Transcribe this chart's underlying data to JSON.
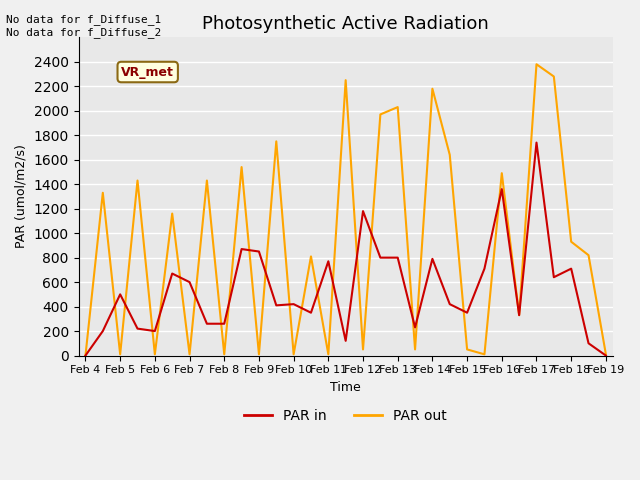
{
  "title": "Photosynthetic Active Radiation",
  "xlabel": "Time",
  "ylabel": "PAR (umol/m2/s)",
  "annotation_top": "No data for f_Diffuse_1\nNo data for f_Diffuse_2",
  "box_label": "VR_met",
  "x_labels": [
    "Feb 4",
    "Feb 5",
    "Feb 6",
    "Feb 7",
    "Feb 8",
    "Feb 9",
    "Feb 10",
    "Feb 11",
    "Feb 12",
    "Feb 13",
    "Feb 14",
    "Feb 15",
    "Feb 16",
    "Feb 17",
    "Feb 18",
    "Feb 19"
  ],
  "ylim": [
    0,
    2600
  ],
  "yticks": [
    0,
    200,
    400,
    600,
    800,
    1000,
    1200,
    1400,
    1600,
    1800,
    2000,
    2200,
    2400
  ],
  "par_in": [
    0,
    200,
    500,
    220,
    200,
    670,
    600,
    260,
    260,
    870,
    850,
    410,
    420,
    350,
    770,
    120,
    1180,
    800,
    800,
    230,
    790,
    420,
    350,
    710,
    1360,
    330,
    1740,
    640,
    710,
    100,
    0
  ],
  "par_out": [
    0,
    1330,
    10,
    1430,
    10,
    1160,
    10,
    1430,
    10,
    1540,
    10,
    1750,
    10,
    810,
    10,
    2250,
    50,
    1970,
    2030,
    50,
    2180,
    1640,
    50,
    10,
    1490,
    330,
    2380,
    2280,
    930,
    820,
    10
  ],
  "par_in_color": "#cc0000",
  "par_out_color": "#ffa500",
  "plot_bg_color": "#e8e8e8",
  "fig_bg_color": "#f0f0f0",
  "legend_labels": [
    "PAR in",
    "PAR out"
  ],
  "figsize": [
    6.4,
    4.8
  ],
  "dpi": 100
}
